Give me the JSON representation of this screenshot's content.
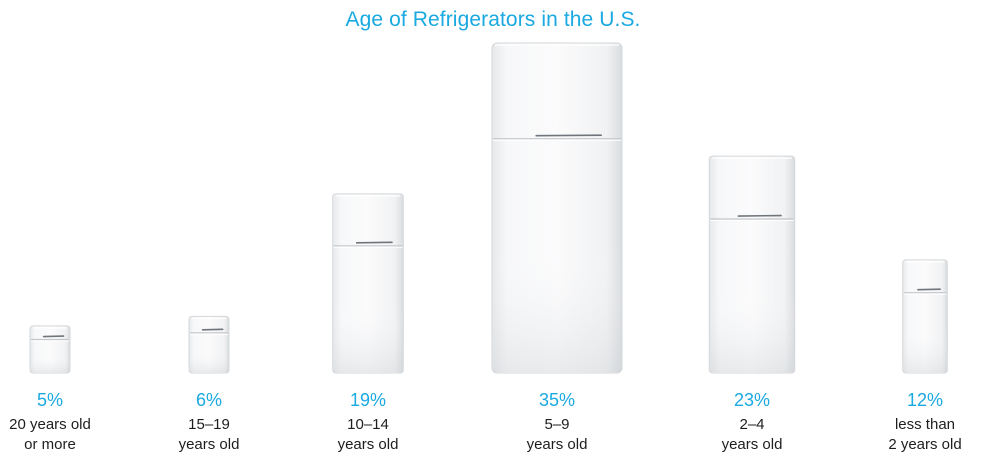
{
  "chart_data": {
    "type": "bar",
    "title": "Age of Refrigerators in the U.S.",
    "unit": "%",
    "categories": [
      [
        "20 years old",
        "or more"
      ],
      [
        "15–19",
        "years old"
      ],
      [
        "10–14",
        "years old"
      ],
      [
        "5–9",
        "years old"
      ],
      [
        "2–4",
        "years old"
      ],
      [
        "less than",
        "2 years old"
      ]
    ],
    "values": [
      5,
      6,
      19,
      35,
      23,
      12
    ],
    "value_labels": [
      "5%",
      "6%",
      "19%",
      "35%",
      "23%",
      "12%"
    ],
    "ylim": [
      0,
      35
    ],
    "grid": false,
    "legend": "none",
    "colors": {
      "title": "#1aa9e1",
      "value_label": "#1aa9e1",
      "category_label": "#1e1e1e",
      "fridge_body": "#f2f3f4",
      "fridge_edge": "#d4d7da"
    }
  }
}
